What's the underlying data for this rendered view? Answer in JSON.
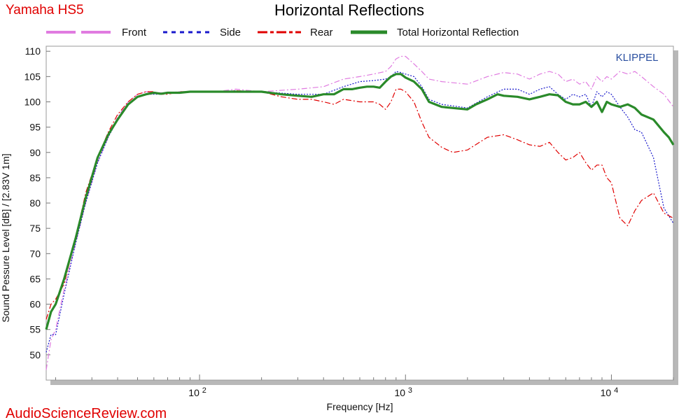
{
  "header": {
    "brand": "Yamaha HS5",
    "title": "Horizontal Reflections"
  },
  "footer": {
    "watermark": "AudioScienceReview.com"
  },
  "chart_data": {
    "type": "line",
    "title": "Horizontal Reflections",
    "xlabel": "Frequency [Hz]",
    "ylabel": "Sound Pessure Level [dB]  / [2.83V 1m]",
    "x_scale": "log",
    "xlim": [
      18,
      20000
    ],
    "ylim": [
      45,
      111
    ],
    "y_ticks": [
      50,
      55,
      60,
      65,
      70,
      75,
      80,
      85,
      90,
      95,
      100,
      105,
      110
    ],
    "x_tick_labels": [
      {
        "value": 100,
        "base": "10",
        "exp": "2"
      },
      {
        "value": 1000,
        "base": "10",
        "exp": "3"
      },
      {
        "value": 10000,
        "base": "10",
        "exp": "4"
      }
    ],
    "grid": false,
    "legend_position": "top",
    "annotation": "KLIPPEL",
    "series": [
      {
        "name": "Front",
        "color": "#e07be0",
        "style": "dash-dot",
        "x": [
          18,
          19,
          20,
          22,
          25,
          28,
          32,
          36,
          40,
          45,
          50,
          55,
          60,
          65,
          70,
          80,
          90,
          100,
          120,
          150,
          200,
          300,
          400,
          500,
          600,
          700,
          800,
          850,
          900,
          950,
          1000,
          1100,
          1200,
          1300,
          1500,
          2000,
          2500,
          3000,
          3500,
          4000,
          4500,
          5000,
          5500,
          6000,
          6500,
          7000,
          7500,
          8000,
          8500,
          9000,
          9500,
          10000,
          11000,
          12000,
          13000,
          14000,
          16000,
          18000,
          20000
        ],
        "y": [
          47,
          53,
          55,
          63,
          72,
          80,
          88,
          93,
          97,
          100,
          101.5,
          102,
          101.8,
          101.8,
          101.8,
          102,
          102,
          102,
          102,
          102.5,
          102,
          102.5,
          103,
          104.5,
          105,
          105.5,
          106,
          107,
          108.5,
          109,
          109,
          107.5,
          106,
          104.5,
          104,
          103.5,
          105,
          105.8,
          105.5,
          104.5,
          105.5,
          106,
          105.5,
          104,
          104.5,
          103.5,
          104,
          102.5,
          105,
          104,
          105,
          104.5,
          106,
          105.5,
          106,
          105,
          103,
          101.5,
          99
        ]
      },
      {
        "name": "Side",
        "color": "#1a1acc",
        "style": "dotted",
        "x": [
          18,
          19,
          20,
          22,
          25,
          28,
          32,
          36,
          40,
          45,
          50,
          55,
          60,
          65,
          70,
          80,
          90,
          100,
          120,
          150,
          200,
          300,
          400,
          500,
          600,
          700,
          800,
          850,
          900,
          950,
          1000,
          1100,
          1200,
          1300,
          1500,
          2000,
          2500,
          3000,
          3500,
          4000,
          4500,
          5000,
          5500,
          6000,
          6500,
          7000,
          7500,
          8000,
          8500,
          9000,
          9500,
          10000,
          11000,
          12000,
          13000,
          14000,
          16000,
          18000,
          20000
        ],
        "y": [
          50.5,
          54,
          54,
          62,
          72,
          80,
          88,
          93,
          96.5,
          99.5,
          101,
          101.5,
          101.5,
          101.5,
          101.8,
          101.8,
          102,
          102,
          102,
          102.2,
          102,
          101.5,
          101.5,
          103,
          104,
          104.2,
          104.5,
          105,
          106,
          105.8,
          105.5,
          105,
          103,
          100.5,
          99.5,
          98.8,
          101,
          102.5,
          102.5,
          101.5,
          102.5,
          103,
          101.5,
          100.5,
          101.5,
          101,
          101.5,
          99,
          102,
          101,
          102,
          101.5,
          99,
          97,
          94.5,
          94,
          89,
          79,
          76
        ]
      },
      {
        "name": "Rear",
        "color": "#e00000",
        "style": "dash-dot",
        "x": [
          18,
          19,
          20,
          22,
          25,
          28,
          32,
          36,
          40,
          45,
          50,
          55,
          60,
          65,
          70,
          80,
          90,
          100,
          120,
          150,
          200,
          250,
          300,
          350,
          400,
          450,
          500,
          600,
          700,
          750,
          800,
          850,
          900,
          950,
          1000,
          1100,
          1200,
          1300,
          1500,
          1700,
          2000,
          2500,
          3000,
          3500,
          4000,
          4500,
          5000,
          5500,
          6000,
          6500,
          7000,
          7500,
          8000,
          8500,
          9000,
          9500,
          10000,
          11000,
          12000,
          13000,
          14000,
          16000,
          18000,
          20000
        ],
        "y": [
          57,
          60,
          61,
          64,
          73,
          82,
          89,
          94,
          97.5,
          100,
          101.5,
          102,
          102,
          101.5,
          101.5,
          102,
          102,
          102,
          102,
          102.2,
          102,
          101,
          100.5,
          100.5,
          100,
          99.5,
          100.5,
          100,
          100,
          99.5,
          98.5,
          100,
          102.5,
          102.5,
          102,
          100,
          96,
          93,
          91,
          90,
          90.5,
          93,
          93.5,
          92.5,
          91.5,
          91.2,
          92,
          90,
          88.5,
          89,
          90,
          88,
          86.5,
          87.5,
          87.5,
          85,
          84,
          77,
          75.5,
          78.5,
          80.5,
          82,
          78,
          77
        ]
      },
      {
        "name": "Total Horizontal Reflection",
        "color": "#2a8a2a",
        "style": "solid",
        "x": [
          18,
          19,
          20,
          22,
          25,
          28,
          32,
          36,
          40,
          45,
          50,
          55,
          60,
          65,
          70,
          80,
          90,
          100,
          120,
          150,
          200,
          250,
          300,
          350,
          400,
          450,
          500,
          550,
          600,
          650,
          700,
          750,
          800,
          850,
          900,
          950,
          1000,
          1100,
          1200,
          1300,
          1500,
          2000,
          2200,
          2500,
          2800,
          3000,
          3500,
          4000,
          4500,
          5000,
          5500,
          6000,
          6500,
          7000,
          7500,
          8000,
          8500,
          9000,
          9500,
          10000,
          11000,
          12000,
          13000,
          14000,
          16000,
          18000,
          19000,
          20000
        ],
        "y": [
          55,
          58.5,
          60,
          65,
          73,
          81,
          89,
          93.5,
          96.5,
          99.5,
          101,
          101.5,
          101.8,
          101.6,
          101.8,
          101.8,
          102,
          102,
          102,
          102,
          102,
          101.5,
          101.2,
          101,
          101.5,
          101.5,
          102.5,
          102.5,
          102.8,
          103,
          103,
          102.8,
          104,
          105,
          105.5,
          105.5,
          104.8,
          104,
          102.5,
          100,
          99,
          98.5,
          99.5,
          100.5,
          101.5,
          101.2,
          101,
          100.5,
          101,
          101.5,
          101.3,
          100,
          99.5,
          99.5,
          100,
          99,
          100,
          98,
          100,
          99.5,
          99,
          99.5,
          98.8,
          97.5,
          96.5,
          94,
          93,
          91.5
        ]
      }
    ]
  }
}
